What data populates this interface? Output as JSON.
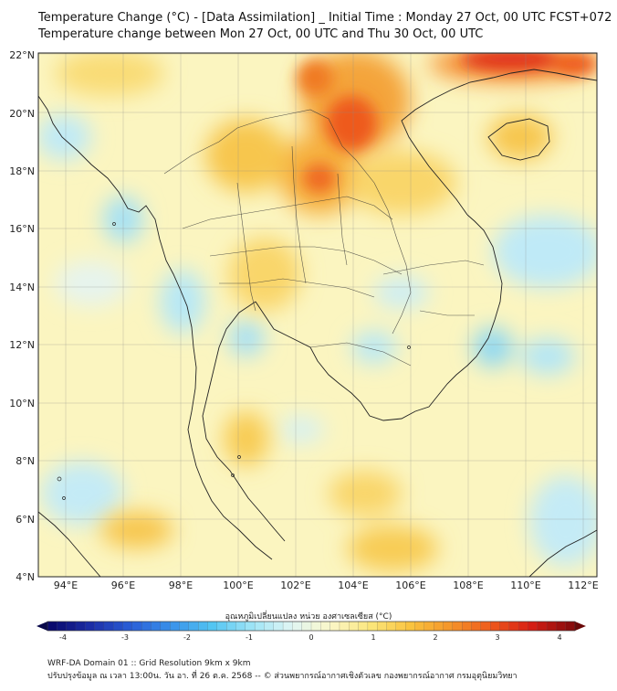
{
  "title": {
    "line1": "Temperature Change (°C) - [Data Assimilation] _ Initial Time : Monday 27 Oct, 00 UTC FCST+072",
    "line2": "Temperature change between Mon 27 Oct, 00 UTC and Thu 30 Oct, 00 UTC"
  },
  "map": {
    "lat_ticks": [
      "22°N",
      "20°N",
      "18°N",
      "16°N",
      "14°N",
      "12°N",
      "10°N",
      "8°N",
      "6°N",
      "4°N"
    ],
    "lon_ticks": [
      "94°E",
      "96°E",
      "98°E",
      "100°E",
      "102°E",
      "104°E",
      "106°E",
      "108°E",
      "110°E",
      "112°E"
    ]
  },
  "colorbar": {
    "label": "อุณหภูมิเปลี่ยนแปลง หน่วย องศาเซลเซียส (°C)",
    "ticks": [
      "-4",
      "-3",
      "-2",
      "-1",
      "0",
      "1",
      "2",
      "3",
      "4"
    ],
    "colors": [
      "#0a0a6e",
      "#1c2fa8",
      "#2a5fd8",
      "#3a92ea",
      "#52c4f2",
      "#9ee4f6",
      "#e0f6f4",
      "#fbf7c8",
      "#fbe67a",
      "#f9c23e",
      "#f5952a",
      "#ee5a1c",
      "#d81e14",
      "#8a0c0c"
    ]
  },
  "footer": {
    "line1": "WRF-DA Domain 01 :: Grid Resolution 9km x 9km",
    "line2": "ปรับปรุงข้อมูล ณ เวลา 13:00น. วัน อา. ที่ 26 ต.ค. 2568 -- © ส่วนพยากรณ์อากาศเชิงตัวเลข กองพยากรณ์อากาศ กรมอุตุนิยมวิทยา"
  }
}
